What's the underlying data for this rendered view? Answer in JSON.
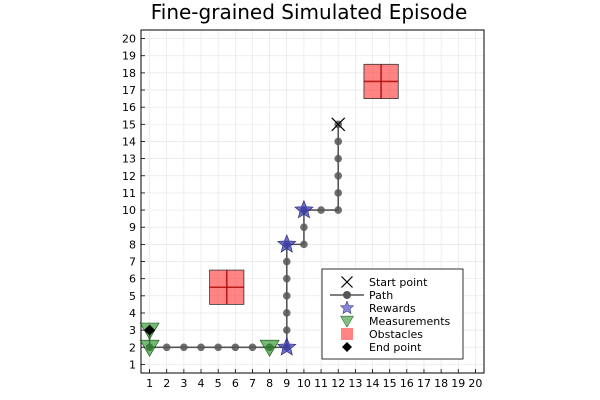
{
  "chart_data": {
    "type": "scatter",
    "title": "Fine-grained Simulated Episode",
    "xlim": [
      0.5,
      20.5
    ],
    "ylim": [
      0.5,
      20.5
    ],
    "xticks": [
      "1",
      "2",
      "3",
      "4",
      "5",
      "6",
      "7",
      "8",
      "9",
      "10",
      "11",
      "12",
      "13",
      "14",
      "15",
      "16",
      "17",
      "18",
      "19",
      "20"
    ],
    "yticks": [
      "1",
      "2",
      "3",
      "4",
      "5",
      "6",
      "7",
      "8",
      "9",
      "10",
      "11",
      "12",
      "13",
      "14",
      "15",
      "16",
      "17",
      "18",
      "19",
      "20"
    ],
    "grid": true,
    "legend_position": "bottom-right",
    "colors": {
      "path": "#555555",
      "reward": "#3333bb",
      "measurement": "#1a8a1a",
      "obstacle": "#ff3333",
      "end": "#000000",
      "start": "#000000"
    },
    "series": [
      {
        "name": "Start point",
        "marker": "x",
        "points": [
          [
            12,
            15
          ]
        ]
      },
      {
        "name": "Path",
        "marker": "circle-line",
        "points": [
          [
            12,
            15
          ],
          [
            12,
            14
          ],
          [
            12,
            13
          ],
          [
            12,
            12
          ],
          [
            12,
            11
          ],
          [
            12,
            10
          ],
          [
            11,
            10
          ],
          [
            10,
            10
          ],
          [
            10,
            9
          ],
          [
            10,
            8
          ],
          [
            9,
            8
          ],
          [
            9,
            7
          ],
          [
            9,
            6
          ],
          [
            9,
            5
          ],
          [
            9,
            4
          ],
          [
            9,
            3
          ],
          [
            9,
            2
          ],
          [
            8,
            2
          ],
          [
            7,
            2
          ],
          [
            6,
            2
          ],
          [
            5,
            2
          ],
          [
            4,
            2
          ],
          [
            3,
            2
          ],
          [
            2,
            2
          ],
          [
            1,
            2
          ],
          [
            1,
            3
          ]
        ]
      },
      {
        "name": "Rewards",
        "marker": "star",
        "points": [
          [
            10,
            10
          ],
          [
            9,
            8
          ],
          [
            9,
            2
          ]
        ]
      },
      {
        "name": "Measurements",
        "marker": "triangle-down",
        "points": [
          [
            1,
            3
          ],
          [
            1,
            2
          ],
          [
            8,
            2
          ]
        ]
      },
      {
        "name": "Obstacles",
        "marker": "square",
        "points": [
          [
            5.5,
            5.5
          ],
          [
            14.5,
            17.5
          ]
        ],
        "size": 2
      },
      {
        "name": "End point",
        "marker": "diamond",
        "points": [
          [
            1,
            3
          ]
        ]
      }
    ]
  }
}
